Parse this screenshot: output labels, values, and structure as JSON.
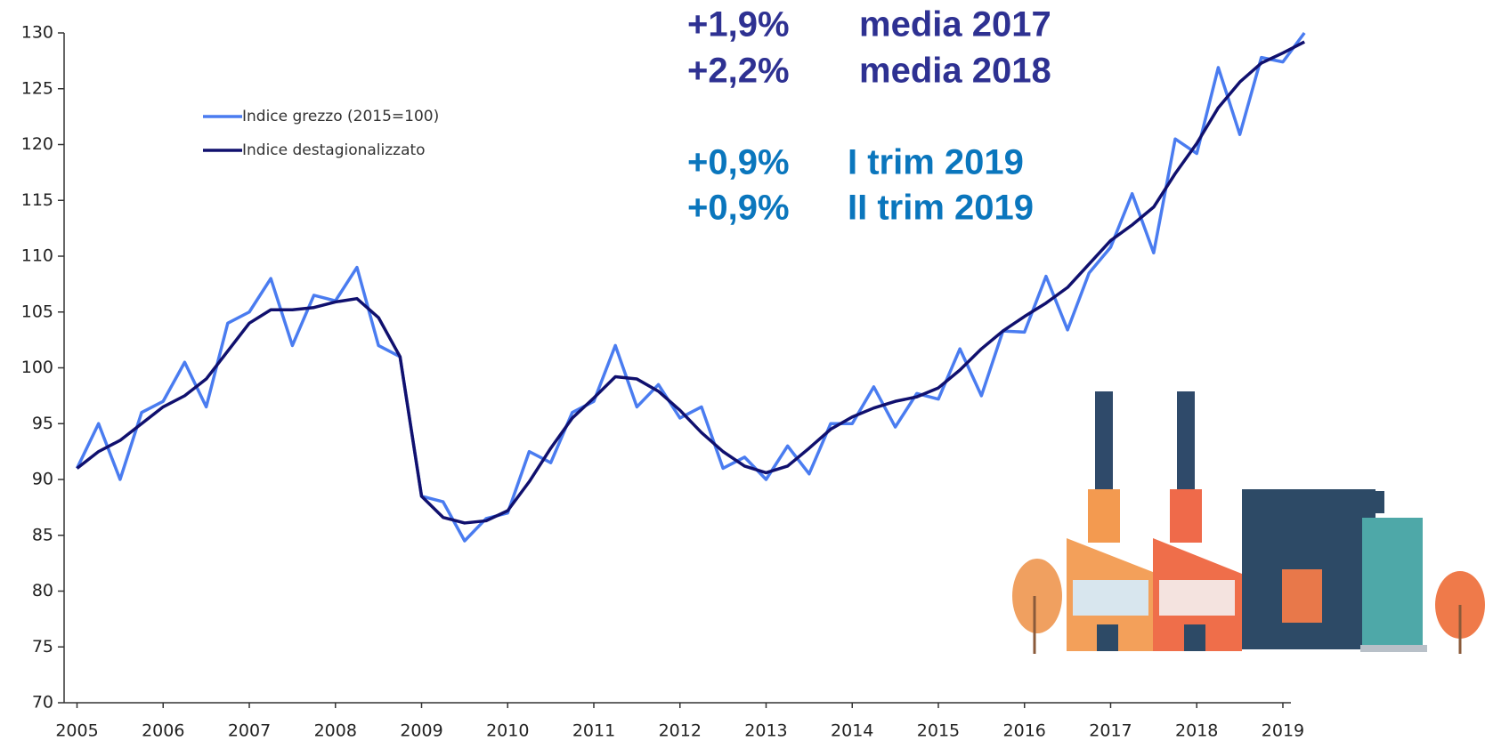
{
  "chart_data": {
    "type": "line",
    "x": [
      2005,
      2005.25,
      2005.5,
      2005.75,
      2006,
      2006.25,
      2006.5,
      2006.75,
      2007,
      2007.25,
      2007.5,
      2007.75,
      2008,
      2008.25,
      2008.5,
      2008.75,
      2009,
      2009.25,
      2009.5,
      2009.75,
      2010,
      2010.25,
      2010.5,
      2010.75,
      2011,
      2011.25,
      2011.5,
      2011.75,
      2012,
      2012.25,
      2012.5,
      2012.75,
      2013,
      2013.25,
      2013.5,
      2013.75,
      2014,
      2014.25,
      2014.5,
      2014.75,
      2015,
      2015.25,
      2015.5,
      2015.75,
      2016,
      2016.25,
      2016.5,
      2016.75,
      2017,
      2017.25,
      2017.5,
      2017.75,
      2018,
      2018.25,
      2018.5,
      2018.75,
      2019,
      2019.25
    ],
    "series": [
      {
        "name": "Indice grezzo (2015=100)",
        "color": "#4a7cf0",
        "width": 3.5,
        "values": [
          91,
          95,
          90,
          96,
          97,
          100.5,
          96.5,
          104,
          105,
          108,
          102,
          106.5,
          106,
          109,
          102,
          101,
          88.5,
          88,
          84.5,
          86.5,
          87,
          92.5,
          91.5,
          96,
          97,
          102,
          96.5,
          98.5,
          95.5,
          96.5,
          91,
          92,
          90,
          93,
          90.5,
          95,
          95,
          98.3,
          94.7,
          97.7,
          97.2,
          101.7,
          97.5,
          103.3,
          103.2,
          108.2,
          103.4,
          108.5,
          110.8,
          115.6,
          110.3,
          120.5,
          119.2,
          126.9,
          120.9,
          127.8,
          127.4,
          130
        ]
      },
      {
        "name": "Indice destagionalizzato",
        "color": "#10106e",
        "width": 3.5,
        "values": [
          91,
          92.5,
          93.5,
          95,
          96.5,
          97.5,
          99,
          101.5,
          104,
          105.2,
          105.2,
          105.4,
          105.9,
          106.2,
          104.5,
          101,
          88.5,
          86.6,
          86.1,
          86.3,
          87.2,
          89.8,
          92.8,
          95.5,
          97.3,
          99.2,
          99,
          97.9,
          96.2,
          94.2,
          92.5,
          91.2,
          90.6,
          91.2,
          92.8,
          94.5,
          95.6,
          96.4,
          97,
          97.4,
          98.2,
          99.8,
          101.7,
          103.3,
          104.6,
          105.8,
          107.2,
          109.3,
          111.4,
          112.8,
          114.4,
          117.4,
          120.1,
          123.3,
          125.6,
          127.3,
          128.2,
          129.2
        ]
      }
    ],
    "xlim": [
      2004.85,
      2019.3
    ],
    "xticks": [
      2005,
      2006,
      2007,
      2008,
      2009,
      2010,
      2011,
      2012,
      2013,
      2014,
      2015,
      2016,
      2017,
      2018,
      2019
    ],
    "ylim": [
      70,
      130
    ],
    "yticks": [
      70,
      75,
      80,
      85,
      90,
      95,
      100,
      105,
      110,
      115,
      120,
      125,
      130
    ],
    "legend": "upper left",
    "annotations": [
      {
        "change": "+1,9%",
        "period": "media 2017",
        "color": "#2e3192"
      },
      {
        "change": "+2,2%",
        "period": "media 2018",
        "color": "#2e3192"
      },
      {
        "change": "+0,9%",
        "period": "I trim 2019",
        "color": "#0a76bd"
      },
      {
        "change": "+0,9%",
        "period": "II trim 2019",
        "color": "#0a76bd"
      }
    ]
  }
}
